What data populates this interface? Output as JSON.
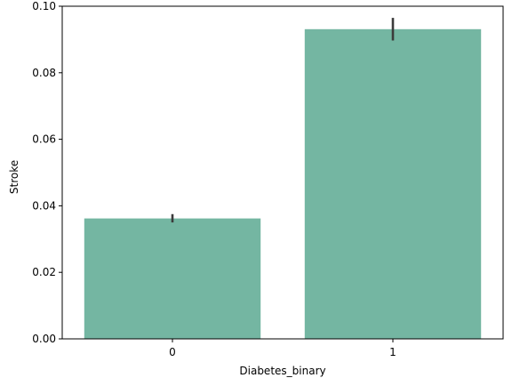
{
  "chart_data": {
    "type": "bar",
    "categories": [
      "0",
      "1"
    ],
    "values": [
      0.0362,
      0.0931
    ],
    "error_bars": [
      [
        0.035,
        0.0375
      ],
      [
        0.0897,
        0.0965
      ]
    ],
    "title": "",
    "xlabel": "Diabetes_binary",
    "ylabel": "Stroke",
    "ylim": [
      0.0,
      0.1
    ],
    "yticks": [
      "0.00",
      "0.02",
      "0.04",
      "0.06",
      "0.08",
      "0.10"
    ],
    "ytick_values": [
      0.0,
      0.02,
      0.04,
      0.06,
      0.08,
      0.1
    ],
    "bar_color": "#74b6a2",
    "error_color": "#3b3b3b",
    "grid": false,
    "legend": "none"
  }
}
